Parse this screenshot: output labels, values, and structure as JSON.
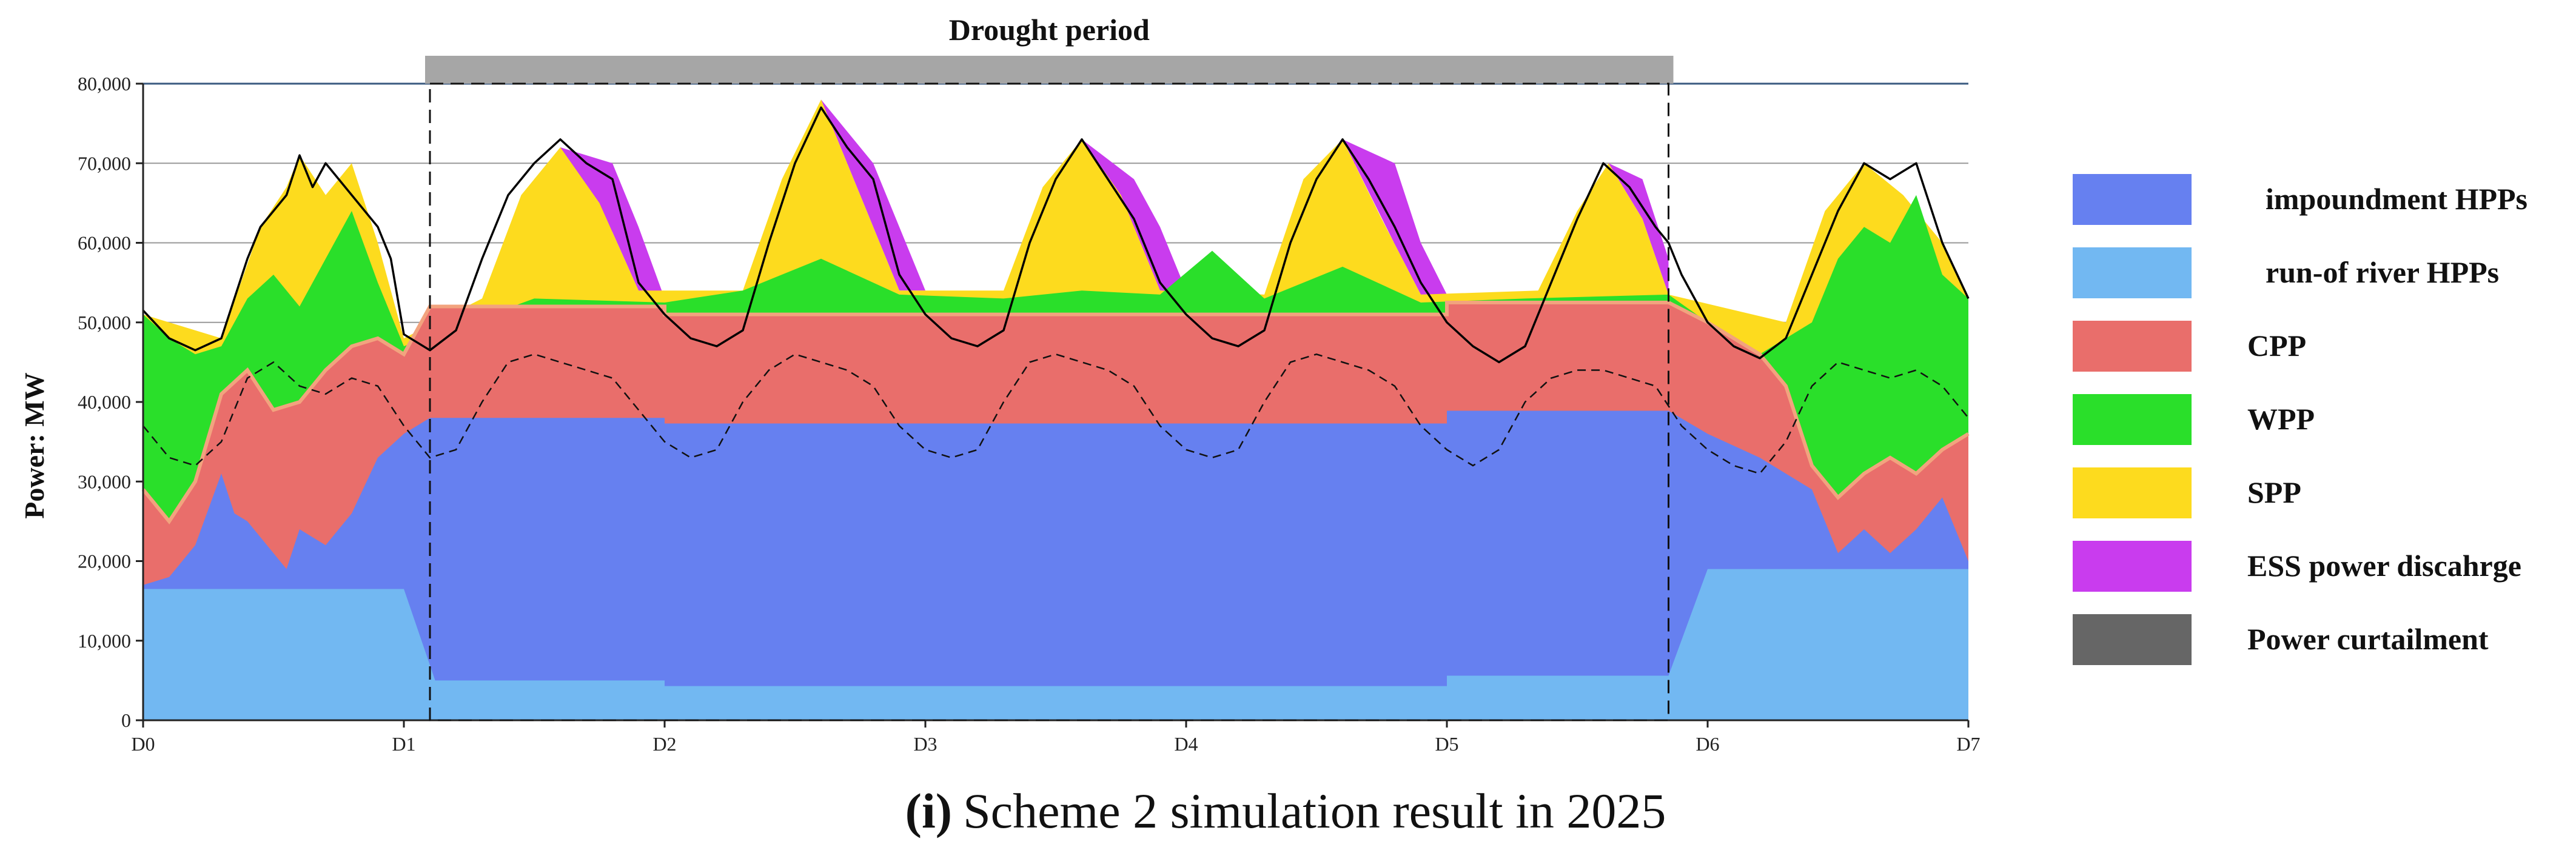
{
  "chart_data": {
    "type": "area",
    "title": "(i) Scheme 2 simulation result in 2025",
    "caption_label": "(i)",
    "caption_text": "Scheme 2 simulation result in 2025",
    "ylabel": "Power:   MW",
    "xlabel": "",
    "ylim": [
      0,
      80000
    ],
    "xlim": [
      0,
      7
    ],
    "grid": true,
    "yticks": [
      0,
      10000,
      20000,
      30000,
      40000,
      50000,
      60000,
      70000,
      80000
    ],
    "ytick_labels": [
      "0",
      "10,000",
      "20,000",
      "30,000",
      "40,000",
      "50,000",
      "60,000",
      "70,000",
      "80,000"
    ],
    "xticks": [
      0,
      1,
      2,
      3,
      4,
      5,
      6,
      7
    ],
    "xtick_labels": [
      "D0",
      "D1",
      "D2",
      "D3",
      "D4",
      "D5",
      "D6",
      "D7"
    ],
    "drought_period": {
      "label": "Drought period",
      "start_day": 1.1,
      "end_day": 5.85
    },
    "legend_position": "right",
    "legend": [
      {
        "name": "impoundment HPPs",
        "color": "#6680F0"
      },
      {
        "name": "run-of river HPPs",
        "color": "#72B8F2"
      },
      {
        "name": "CPP",
        "color": "#E96E6B"
      },
      {
        "name": "WPP",
        "color": "#2ADF2A"
      },
      {
        "name": "SPP",
        "color": "#FDDB1E"
      },
      {
        "name": "ESS power discahrge",
        "color": "#C93CEE"
      },
      {
        "name": "Power curtailment",
        "color": "#666666"
      }
    ],
    "series": [
      {
        "name": "run-of river HPPs",
        "color": "#72B8F2",
        "x": [
          0,
          1.0,
          1.12,
          2.0,
          2.0,
          5.0,
          5.0,
          5.85,
          6.0,
          7.0
        ],
        "values": [
          16500,
          16500,
          5000,
          5000,
          4300,
          4300,
          5600,
          5600,
          19000,
          19000
        ]
      },
      {
        "name": "impoundment HPPs",
        "color": "#6680F0",
        "x": [
          0,
          0.1,
          0.2,
          0.3,
          0.35,
          0.4,
          0.5,
          0.55,
          0.6,
          0.7,
          0.8,
          0.9,
          1.0,
          1.1,
          2.0,
          2.0,
          5.0,
          5.0,
          5.85,
          6.0,
          6.2,
          6.4,
          6.5,
          6.6,
          6.7,
          6.8,
          6.9,
          7.0
        ],
        "values": [
          17000,
          18000,
          22000,
          31000,
          26000,
          25000,
          21000,
          19000,
          24000,
          22000,
          26000,
          33000,
          36000,
          38000,
          38000,
          37300,
          37300,
          38900,
          38900,
          36000,
          33000,
          29000,
          21000,
          24000,
          21000,
          24000,
          28000,
          20000
        ]
      },
      {
        "name": "CPP",
        "color": "#E96E6B",
        "x": [
          0,
          0.1,
          0.2,
          0.3,
          0.4,
          0.5,
          0.6,
          0.7,
          0.8,
          0.9,
          1.0,
          1.1,
          2.0,
          2.0,
          5.0,
          5.0,
          5.85,
          6.0,
          6.2,
          6.3,
          6.4,
          6.5,
          6.6,
          6.7,
          6.8,
          6.9,
          7.0
        ],
        "values": [
          29000,
          25000,
          30000,
          41000,
          44000,
          39000,
          40000,
          44000,
          47000,
          48000,
          46000,
          52000,
          52000,
          51000,
          51000,
          52500,
          52500,
          50000,
          46000,
          42000,
          32000,
          28000,
          31000,
          33000,
          31000,
          34000,
          36000
        ]
      },
      {
        "name": "WPP",
        "color": "#2ADF2A",
        "x": [
          0,
          0.1,
          0.2,
          0.3,
          0.4,
          0.5,
          0.6,
          0.7,
          0.8,
          0.9,
          1.0,
          1.5,
          2.0,
          2.3,
          2.6,
          2.9,
          3.3,
          3.6,
          3.9,
          4.1,
          4.3,
          4.6,
          4.9,
          5.3,
          5.85,
          6.0,
          6.2,
          6.4,
          6.5,
          6.6,
          6.7,
          6.8,
          6.9,
          7.0
        ],
        "values": [
          51000,
          48000,
          46000,
          47000,
          53000,
          56000,
          52000,
          58000,
          64000,
          55000,
          47000,
          53000,
          52500,
          54000,
          58000,
          53500,
          53000,
          54000,
          53500,
          59000,
          53000,
          57000,
          52500,
          53000,
          53500,
          50000,
          46000,
          50000,
          58000,
          62000,
          60000,
          66000,
          56000,
          53000
        ]
      },
      {
        "name": "SPP",
        "color": "#FDDB1E",
        "x": [
          0,
          0.3,
          0.45,
          0.55,
          0.6,
          0.7,
          0.8,
          0.9,
          1.0,
          1.3,
          1.45,
          1.6,
          1.75,
          1.9,
          2.3,
          2.45,
          2.6,
          2.75,
          2.9,
          3.3,
          3.45,
          3.6,
          3.75,
          3.9,
          4.3,
          4.45,
          4.6,
          4.75,
          4.9,
          5.35,
          5.5,
          5.62,
          5.75,
          5.85,
          6.3,
          6.45,
          6.6,
          6.75,
          6.9,
          7.0
        ],
        "values": [
          51000,
          48000,
          62000,
          67000,
          71000,
          66000,
          70000,
          60000,
          48000,
          53000,
          66000,
          72000,
          65000,
          54000,
          54000,
          68000,
          78000,
          66000,
          54000,
          54000,
          67000,
          73000,
          66000,
          54000,
          53500,
          68000,
          73000,
          63000,
          53500,
          54000,
          64000,
          70000,
          63000,
          53500,
          50000,
          64000,
          70000,
          66000,
          60000,
          53000
        ]
      },
      {
        "name": "ESS power discahrge",
        "color": "#C93CEE",
        "x": [
          1.3,
          1.45,
          1.6,
          1.8,
          1.9,
          2.0,
          2.3,
          2.45,
          2.6,
          2.8,
          2.9,
          3.0,
          3.3,
          3.45,
          3.6,
          3.8,
          3.9,
          4.0,
          4.3,
          4.45,
          4.6,
          4.8,
          4.9,
          5.0,
          5.35,
          5.5,
          5.62,
          5.75,
          5.85
        ],
        "values": [
          53000,
          66000,
          72000,
          70000,
          62000,
          53000,
          54000,
          68000,
          78000,
          70000,
          62000,
          54000,
          54000,
          67000,
          73000,
          68000,
          62000,
          54000,
          53500,
          68000,
          73000,
          70000,
          60000,
          53500,
          54000,
          64000,
          70000,
          68000,
          58000
        ]
      },
      {
        "name": "Power curtailment",
        "color": "#666666",
        "x": [
          0,
          7
        ],
        "values": [
          0,
          0
        ]
      }
    ],
    "load_curve": {
      "style": "solid",
      "x": [
        0,
        0.1,
        0.2,
        0.3,
        0.4,
        0.45,
        0.55,
        0.6,
        0.65,
        0.7,
        0.8,
        0.9,
        0.95,
        1.0,
        1.1,
        1.2,
        1.3,
        1.4,
        1.5,
        1.6,
        1.7,
        1.8,
        1.9,
        2.0,
        2.1,
        2.2,
        2.3,
        2.4,
        2.5,
        2.6,
        2.7,
        2.8,
        2.9,
        3.0,
        3.1,
        3.2,
        3.3,
        3.4,
        3.5,
        3.6,
        3.7,
        3.8,
        3.9,
        4.0,
        4.1,
        4.2,
        4.3,
        4.4,
        4.5,
        4.6,
        4.7,
        4.8,
        4.9,
        5.0,
        5.1,
        5.2,
        5.3,
        5.4,
        5.5,
        5.6,
        5.7,
        5.8,
        5.85,
        5.9,
        6.0,
        6.1,
        6.2,
        6.3,
        6.4,
        6.5,
        6.6,
        6.7,
        6.8,
        6.9,
        7.0
      ],
      "values": [
        51500,
        48000,
        46500,
        48000,
        58000,
        62000,
        66000,
        71000,
        67000,
        70000,
        66000,
        62000,
        58000,
        48500,
        46500,
        49000,
        58000,
        66000,
        70000,
        73000,
        70000,
        68000,
        55000,
        51000,
        48000,
        47000,
        49000,
        60000,
        70000,
        77000,
        72000,
        68000,
        56000,
        51000,
        48000,
        47000,
        49000,
        60000,
        68000,
        73000,
        68000,
        63000,
        55000,
        51000,
        48000,
        47000,
        49000,
        60000,
        68000,
        73000,
        68000,
        62000,
        55000,
        50000,
        47000,
        45000,
        47000,
        55000,
        63000,
        70000,
        67000,
        62000,
        60000,
        56000,
        50000,
        47000,
        45500,
        48000,
        56000,
        64000,
        70000,
        68000,
        70000,
        60000,
        53000
      ]
    },
    "dashed_curve": {
      "style": "dashed",
      "x": [
        0,
        0.1,
        0.2,
        0.3,
        0.4,
        0.5,
        0.6,
        0.7,
        0.8,
        0.9,
        1.0,
        1.1,
        1.2,
        1.3,
        1.4,
        1.5,
        1.6,
        1.7,
        1.8,
        1.9,
        2.0,
        2.1,
        2.2,
        2.3,
        2.4,
        2.5,
        2.6,
        2.7,
        2.8,
        2.9,
        3.0,
        3.1,
        3.2,
        3.3,
        3.4,
        3.5,
        3.6,
        3.7,
        3.8,
        3.9,
        4.0,
        4.1,
        4.2,
        4.3,
        4.4,
        4.5,
        4.6,
        4.7,
        4.8,
        4.9,
        5.0,
        5.1,
        5.2,
        5.3,
        5.4,
        5.5,
        5.6,
        5.7,
        5.8,
        5.9,
        6.0,
        6.1,
        6.2,
        6.3,
        6.4,
        6.5,
        6.6,
        6.7,
        6.8,
        6.9,
        7.0
      ],
      "values": [
        37000,
        33000,
        32000,
        35000,
        43000,
        45000,
        42000,
        41000,
        43000,
        42000,
        37000,
        33000,
        34000,
        40000,
        45000,
        46000,
        45000,
        44000,
        43000,
        39000,
        35000,
        33000,
        34000,
        40000,
        44000,
        46000,
        45000,
        44000,
        42000,
        37000,
        34000,
        33000,
        34000,
        40000,
        45000,
        46000,
        45000,
        44000,
        42000,
        37000,
        34000,
        33000,
        34000,
        40000,
        45000,
        46000,
        45000,
        44000,
        42000,
        37000,
        34000,
        32000,
        34000,
        40000,
        43000,
        44000,
        44000,
        43000,
        42000,
        37000,
        34000,
        32000,
        31000,
        35000,
        42000,
        45000,
        44000,
        43000,
        44000,
        42000,
        38000
      ]
    }
  }
}
